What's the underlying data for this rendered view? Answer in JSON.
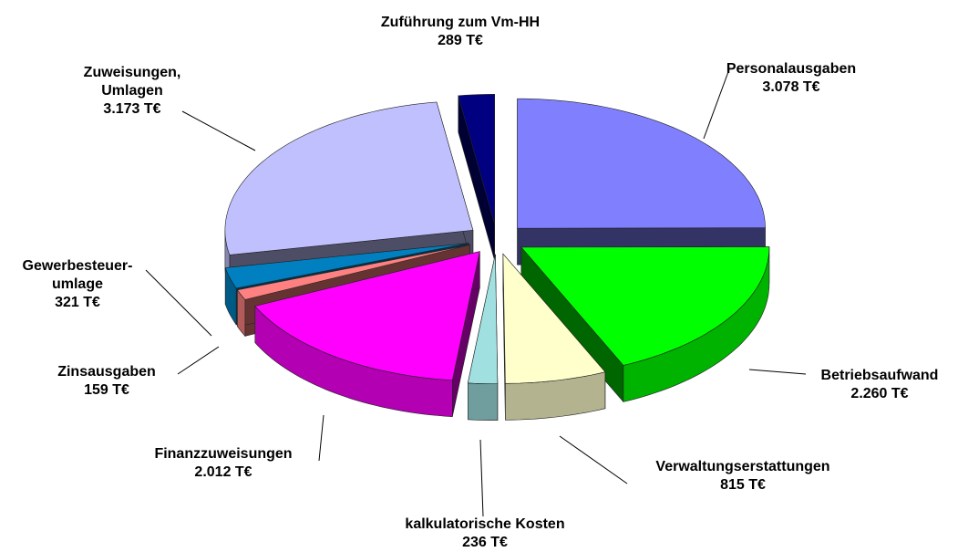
{
  "chart_data": {
    "type": "pie3d",
    "categories": [
      "Personalausgaben",
      "Betriebsaufwand",
      "Verwaltungserstattungen",
      "kalkulatorische Kosten",
      "Finanzzuweisungen",
      "Zinsausgaben",
      "Gewerbesteuer-\numlage",
      "Zuweisungen,\nUmlagen",
      "Zuführung zum Vm-HH"
    ],
    "values": [
      3078,
      2260,
      815,
      236,
      2012,
      159,
      321,
      3173,
      289
    ],
    "value_labels": [
      "3.078 T€",
      "2.260 T€",
      "815 T€",
      "236 T€",
      "2.012 T€",
      "159 T€",
      "321 T€",
      "3.173 T€",
      "289 T€"
    ],
    "colors": [
      "#8080ff",
      "#00ff00",
      "#ffffcc",
      "#a0e0e0",
      "#ff00ff",
      "#ff8080",
      "#0080c0",
      "#c0c0ff",
      "#000080"
    ]
  }
}
